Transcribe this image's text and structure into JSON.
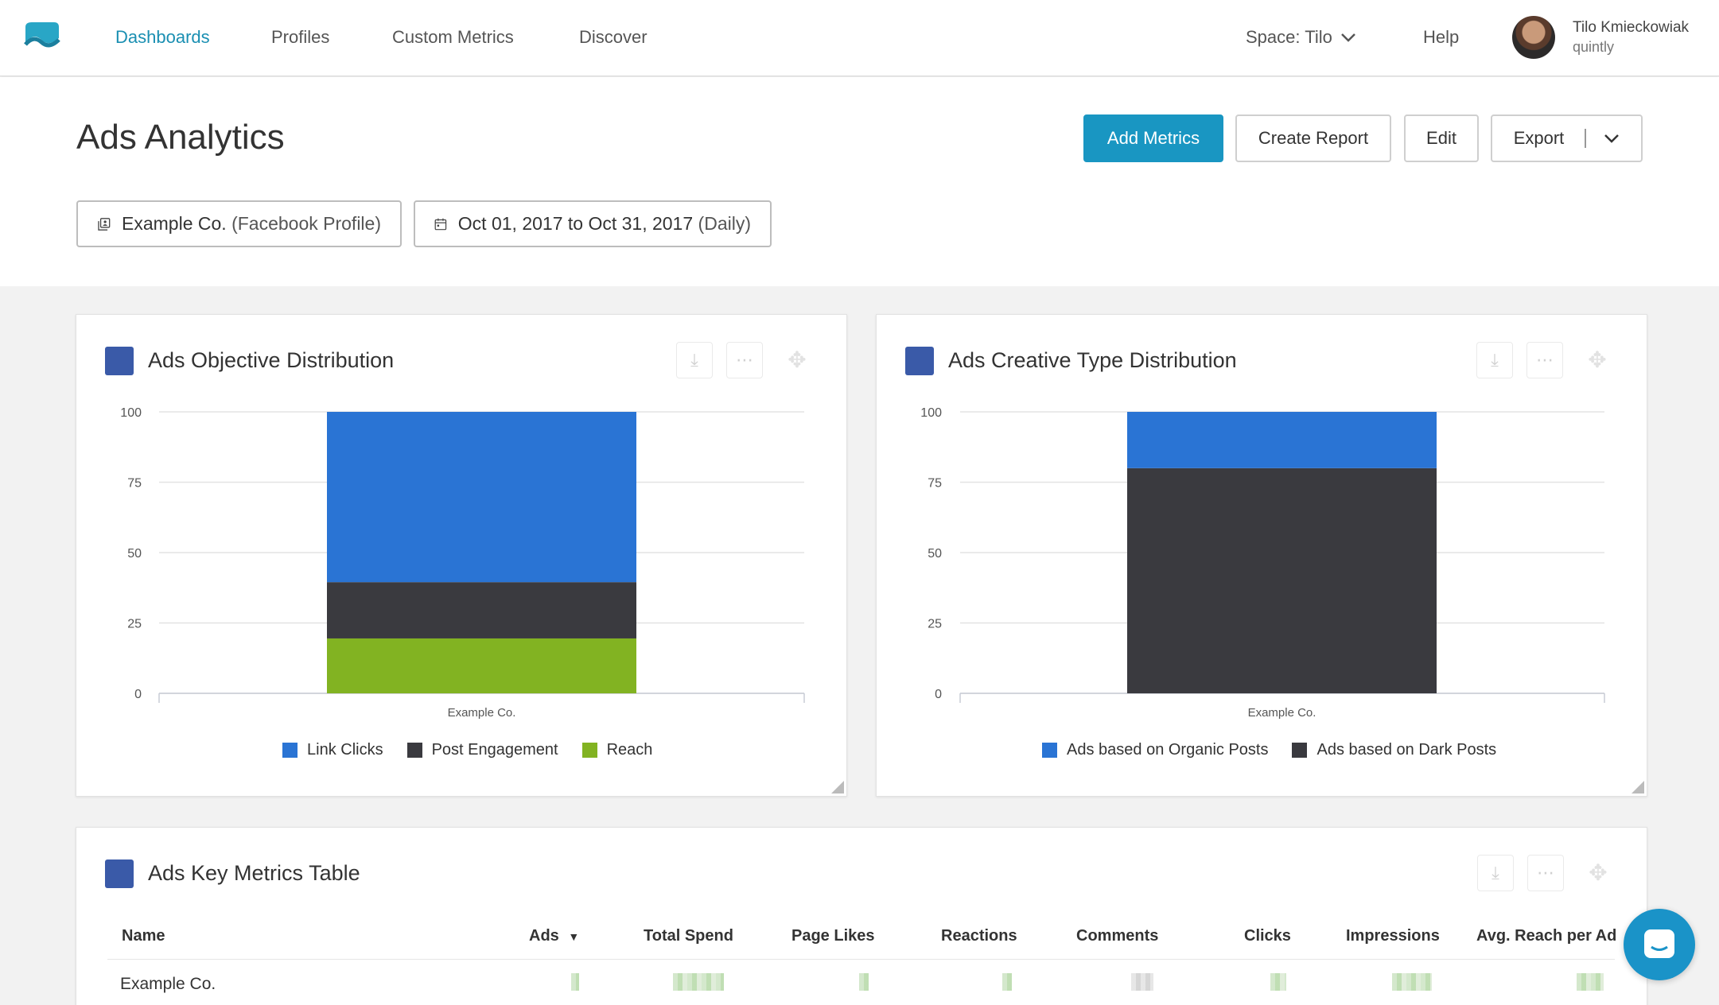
{
  "nav": {
    "items": [
      {
        "label": "Dashboards",
        "active": true
      },
      {
        "label": "Profiles",
        "active": false
      },
      {
        "label": "Custom Metrics",
        "active": false
      },
      {
        "label": "Discover",
        "active": false
      }
    ],
    "space_label": "Space: Tilo",
    "help_label": "Help",
    "user": {
      "name": "Tilo Kmieckowiak",
      "org": "quintly"
    },
    "colors": {
      "accent": "#1a8fb2",
      "primary_button": "#1996c2"
    }
  },
  "page": {
    "title": "Ads Analytics",
    "buttons": {
      "add_metrics": "Add Metrics",
      "create_report": "Create Report",
      "edit": "Edit",
      "export": "Export"
    },
    "filters": {
      "profile": {
        "name": "Example Co.",
        "detail": "(Facebook Profile)",
        "icon": "profile-copy-icon"
      },
      "date": {
        "range": "Oct 01, 2017 to Oct 31, 2017",
        "interval": "(Daily)",
        "icon": "calendar-icon"
      }
    }
  },
  "chart_data": [
    {
      "type": "bar",
      "stacked": true,
      "title": "Ads Objective Distribution",
      "categories": [
        "Example Co."
      ],
      "series": [
        {
          "name": "Reach",
          "values": [
            19.5
          ],
          "color": "#82b322"
        },
        {
          "name": "Post Engagement",
          "values": [
            20
          ],
          "color": "#3a3a3f"
        },
        {
          "name": "Link Clicks",
          "values": [
            60.5
          ],
          "color": "#2a74d4"
        }
      ],
      "legend_order": [
        "Link Clicks",
        "Post Engagement",
        "Reach"
      ],
      "yticks": [
        "0",
        "25",
        "50",
        "75",
        "100"
      ],
      "ylim": [
        0,
        100
      ],
      "grid": true,
      "legend_position": "bottom"
    },
    {
      "type": "bar",
      "stacked": true,
      "title": "Ads Creative Type Distribution",
      "categories": [
        "Example Co."
      ],
      "series": [
        {
          "name": "Ads based on Dark Posts",
          "values": [
            80
          ],
          "color": "#3a3a3f"
        },
        {
          "name": "Ads based on Organic Posts",
          "values": [
            20
          ],
          "color": "#2a74d4"
        }
      ],
      "legend_order": [
        "Ads based on Organic Posts",
        "Ads based on Dark Posts"
      ],
      "yticks": [
        "0",
        "25",
        "50",
        "75",
        "100"
      ],
      "ylim": [
        0,
        100
      ],
      "grid": true,
      "legend_position": "bottom"
    }
  ],
  "table": {
    "title": "Ads Key Metrics Table",
    "columns": [
      "Name",
      "Ads",
      "Total Spend",
      "Page Likes",
      "Reactions",
      "Comments",
      "Clicks",
      "Impressions",
      "Avg. Reach per Ad"
    ],
    "sorted_column": "Ads",
    "rows": [
      {
        "name": "Example Co."
      }
    ]
  }
}
